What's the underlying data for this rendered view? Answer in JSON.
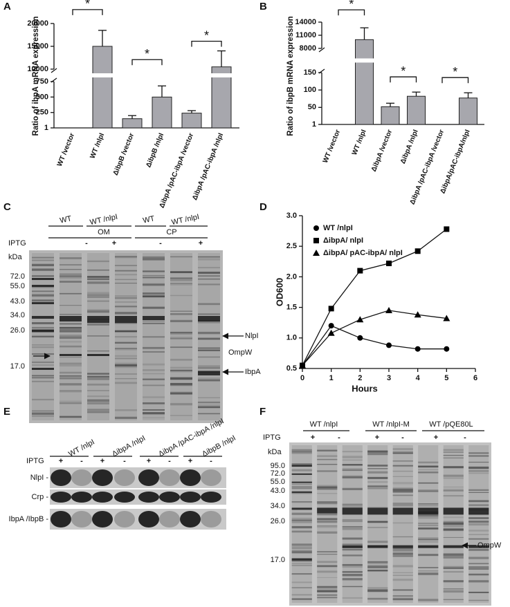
{
  "panel_labels": [
    "A",
    "B",
    "C",
    "D",
    "E",
    "F"
  ],
  "chart_data": [
    {
      "type": "bar",
      "ylabel": "Ratio of ibpA mRNA expression",
      "categories": [
        "WT /vector",
        "WT /nlpI",
        "ΔibpB /vector",
        "ΔibpB /nlpI",
        "ΔibpA /pAC-ibpA /vector",
        "ΔibpA /pAC-ibpA /nlpI"
      ],
      "values": [
        1,
        15000,
        150,
        500,
        240,
        10500
      ],
      "errors": [
        0,
        3500,
        50,
        180,
        40,
        3500
      ],
      "color": "#a7a7ad",
      "y_segments": [
        {
          "ylim": [
            1,
            750
          ],
          "yticks": [
            1,
            250,
            500,
            750
          ]
        },
        {
          "ylim": [
            10000,
            20000
          ],
          "yticks": [
            10000,
            15000,
            20000
          ]
        }
      ],
      "annotations": [
        "*",
        "*",
        "*"
      ]
    },
    {
      "type": "bar",
      "ylabel": "Ratio of ibpB mRNA expression",
      "categories": [
        "WT /vector",
        "WT /nlpI",
        "ΔibpA /vector",
        "ΔibpA /nlpI",
        "ΔibpA /pAC-ibpA /vector",
        "ΔibpA/pAC-ibpA/nlpI"
      ],
      "values": [
        1,
        10000,
        52,
        82,
        1,
        77
      ],
      "errors": [
        0,
        2700,
        10,
        12,
        0,
        15
      ],
      "color": "#a7a7ad",
      "y_segments": [
        {
          "ylim": [
            1,
            150
          ],
          "yticks": [
            1,
            50,
            100,
            150
          ]
        },
        {
          "ylim": [
            8000,
            14000
          ],
          "yticks": [
            8000,
            11000,
            14000
          ]
        }
      ],
      "annotations": [
        "*",
        "*",
        "*"
      ]
    },
    {
      "type": "line",
      "xlabel": "Hours",
      "ylabel": "OD600",
      "x": [
        0,
        1,
        2,
        3,
        4,
        5
      ],
      "series": [
        {
          "name": "WT /nlpI",
          "color": "#000000",
          "marker": "circle",
          "values": [
            0.55,
            1.2,
            1.0,
            0.88,
            0.82,
            0.82
          ]
        },
        {
          "name": "ΔibpA/ nlpI",
          "color": "#000000",
          "marker": "square",
          "values": [
            0.55,
            1.48,
            2.1,
            2.22,
            2.42,
            2.78
          ]
        },
        {
          "name": "ΔibpA/ pAC-ibpA/ nlpI",
          "color": "#000000",
          "marker": "triangle",
          "values": [
            0.55,
            1.08,
            1.3,
            1.45,
            1.38,
            1.32
          ]
        }
      ],
      "xlim": [
        0,
        6
      ],
      "xticks": [
        0,
        1,
        2,
        3,
        4,
        5,
        6
      ],
      "ylim": [
        0.5,
        3.0
      ],
      "yticks": [
        0.5,
        {
          "value": 1.0,
          "label": "1.0"
        },
        1.5,
        {
          "value": 2.0,
          "label": "2.0"
        },
        2.5,
        {
          "value": 3.0,
          "label": "3.0"
        }
      ],
      "legend": "upper left"
    }
  ],
  "gel_c": {
    "groups": [
      "WT",
      "WT /nlpI",
      "WT",
      "WT /nlpI"
    ],
    "fractions": [
      "OM",
      "CP"
    ],
    "iptg_label": "IPTG",
    "iptg": [
      "-",
      "+",
      "-",
      "+"
    ],
    "unit": "kDa",
    "markers": [
      "72.0",
      "55.0",
      "43.0",
      "34.0",
      "26.0",
      "17.0"
    ],
    "bands": [
      "NlpI",
      "OmpW",
      "IbpA"
    ]
  },
  "blot_e": {
    "groups": [
      "WT /nlpI",
      "ΔibpA /nlpI",
      "ΔibpA /pAC-ibpA /nlpI",
      "ΔibpB /nlpI"
    ],
    "iptg_label": "IPTG",
    "iptg": [
      "+",
      "-",
      "+",
      "-",
      "+",
      "-",
      "+",
      "-"
    ],
    "rows": [
      "NlpI -",
      "Crp -",
      "IbpA /IbpB -"
    ]
  },
  "gel_f": {
    "groups": [
      "WT /nlpI",
      "WT /nlpI-M",
      "WT /pQE80L"
    ],
    "iptg_label": "IPTG",
    "iptg": [
      "+",
      "-",
      "+",
      "-",
      "+",
      "-"
    ],
    "unit": "kDa",
    "markers": [
      "95.0",
      "72.0",
      "55.0",
      "43.0",
      "34.0",
      "26.0",
      "17.0"
    ],
    "bands": [
      "OmpW"
    ]
  }
}
